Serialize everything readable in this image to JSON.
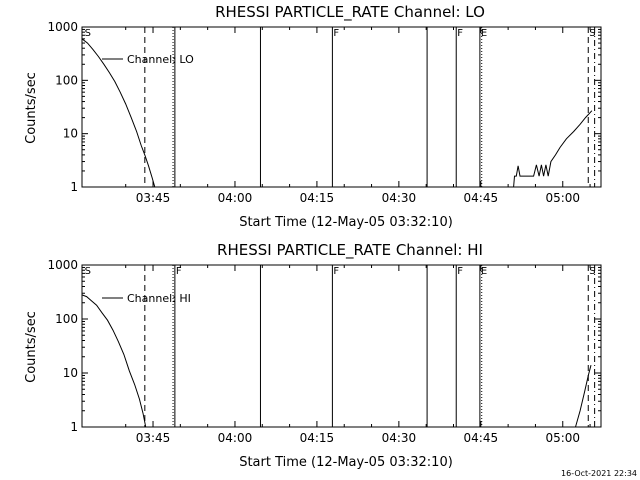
{
  "timestamp": "16-Oct-2021 22:34",
  "chart_data": [
    {
      "type": "line",
      "title": "RHESSI PARTICLE_RATE Channel: LO",
      "xlabel": "Start Time (12-May-05 03:32:10)",
      "ylabel": "Counts/sec",
      "yscale": "log",
      "ylim": [
        1,
        1000
      ],
      "xlim": [
        0,
        5700
      ],
      "x_unit": "seconds since start time",
      "x_ticks": [
        {
          "x": 780,
          "label": "03:45"
        },
        {
          "x": 1680,
          "label": "04:00"
        },
        {
          "x": 2580,
          "label": "04:15"
        },
        {
          "x": 3480,
          "label": "04:30"
        },
        {
          "x": 4380,
          "label": "04:45"
        },
        {
          "x": 5280,
          "label": "05:00"
        }
      ],
      "y_ticks": [
        {
          "y": 1,
          "label": "1"
        },
        {
          "y": 10,
          "label": "10"
        },
        {
          "y": 100,
          "label": "100"
        },
        {
          "y": 1000,
          "label": "1000"
        }
      ],
      "legend": "Channel: LO",
      "legend_position": "top-left",
      "markers": [
        {
          "x": 18,
          "style": "none",
          "label": "S"
        },
        {
          "x": 690,
          "style": "dashed",
          "label": ""
        },
        {
          "x": 1000,
          "style": "dotted",
          "label": ""
        },
        {
          "x": 1020,
          "style": "solid",
          "label": ""
        },
        {
          "x": 1960,
          "style": "solid",
          "label": ""
        },
        {
          "x": 2750,
          "style": "solid",
          "label": "F"
        },
        {
          "x": 3790,
          "style": "solid",
          "label": ""
        },
        {
          "x": 4110,
          "style": "solid",
          "label": "F"
        },
        {
          "x": 4370,
          "style": "solid",
          "label": "E"
        },
        {
          "x": 4390,
          "style": "dotted",
          "label": ""
        },
        {
          "x": 5560,
          "style": "dashed",
          "label": "S"
        },
        {
          "x": 5630,
          "style": "dashdot",
          "label": ""
        }
      ],
      "series": [
        {
          "segments": [
            [
              [
                0,
                600
              ],
              [
                60,
                500
              ],
              [
                120,
                380
              ],
              [
                180,
                280
              ],
              [
                240,
                200
              ],
              [
                300,
                140
              ],
              [
                360,
                95
              ],
              [
                420,
                60
              ],
              [
                480,
                36
              ],
              [
                540,
                20
              ],
              [
                600,
                11
              ],
              [
                650,
                6
              ],
              [
                690,
                4
              ],
              [
                730,
                2.5
              ],
              [
                770,
                1.5
              ],
              [
                800,
                1
              ]
            ],
            [
              [
                4700,
                1
              ],
              [
                4740,
                1
              ],
              [
                4750,
                1.6
              ],
              [
                4770,
                1.6
              ],
              [
                4790,
                2.5
              ],
              [
                4810,
                1.6
              ],
              [
                4880,
                1.6
              ],
              [
                4960,
                1.6
              ],
              [
                4990,
                2.6
              ],
              [
                5020,
                1.6
              ],
              [
                5045,
                2.6
              ],
              [
                5070,
                1.6
              ],
              [
                5095,
                2.6
              ],
              [
                5120,
                1.6
              ],
              [
                5150,
                3
              ],
              [
                5200,
                4
              ],
              [
                5250,
                5.5
              ],
              [
                5320,
                8
              ],
              [
                5400,
                11
              ],
              [
                5470,
                15
              ],
              [
                5530,
                20
              ],
              [
                5600,
                27
              ]
            ]
          ]
        }
      ]
    },
    {
      "type": "line",
      "title": "RHESSI PARTICLE_RATE Channel: HI",
      "xlabel": "Start Time (12-May-05 03:32:10)",
      "ylabel": "Counts/sec",
      "yscale": "log",
      "ylim": [
        1,
        1000
      ],
      "xlim": [
        0,
        5700
      ],
      "x_unit": "seconds since start time",
      "x_ticks": [
        {
          "x": 780,
          "label": "03:45"
        },
        {
          "x": 1680,
          "label": "04:00"
        },
        {
          "x": 2580,
          "label": "04:15"
        },
        {
          "x": 3480,
          "label": "04:30"
        },
        {
          "x": 4380,
          "label": "04:45"
        },
        {
          "x": 5280,
          "label": "05:00"
        }
      ],
      "y_ticks": [
        {
          "y": 1,
          "label": "1"
        },
        {
          "y": 10,
          "label": "10"
        },
        {
          "y": 100,
          "label": "100"
        },
        {
          "y": 1000,
          "label": "1000"
        }
      ],
      "legend": "Channel: HI",
      "legend_position": "top-left",
      "markers": [
        {
          "x": 18,
          "style": "none",
          "label": "S"
        },
        {
          "x": 690,
          "style": "dashed",
          "label": ""
        },
        {
          "x": 1000,
          "style": "dotted",
          "label": ""
        },
        {
          "x": 1020,
          "style": "solid",
          "label": "F"
        },
        {
          "x": 1960,
          "style": "solid",
          "label": ""
        },
        {
          "x": 2750,
          "style": "solid",
          "label": "F"
        },
        {
          "x": 3790,
          "style": "solid",
          "label": ""
        },
        {
          "x": 4110,
          "style": "solid",
          "label": "F"
        },
        {
          "x": 4370,
          "style": "solid",
          "label": "E"
        },
        {
          "x": 4390,
          "style": "dotted",
          "label": ""
        },
        {
          "x": 5560,
          "style": "dashed",
          "label": "S"
        },
        {
          "x": 5630,
          "style": "dashdot",
          "label": ""
        }
      ],
      "series": [
        {
          "segments": [
            [
              [
                0,
                280
              ],
              [
                50,
                260
              ],
              [
                100,
                220
              ],
              [
                160,
                180
              ],
              [
                220,
                130
              ],
              [
                280,
                95
              ],
              [
                340,
                62
              ],
              [
                400,
                38
              ],
              [
                460,
                22
              ],
              [
                520,
                11
              ],
              [
                580,
                6
              ],
              [
                630,
                3.3
              ],
              [
                670,
                1.8
              ],
              [
                695,
                1.1
              ],
              [
                700,
                1
              ]
            ],
            [
              [
                5420,
                1
              ],
              [
                5470,
                2
              ],
              [
                5520,
                4.5
              ],
              [
                5560,
                9
              ],
              [
                5590,
                14
              ]
            ]
          ]
        }
      ]
    }
  ]
}
